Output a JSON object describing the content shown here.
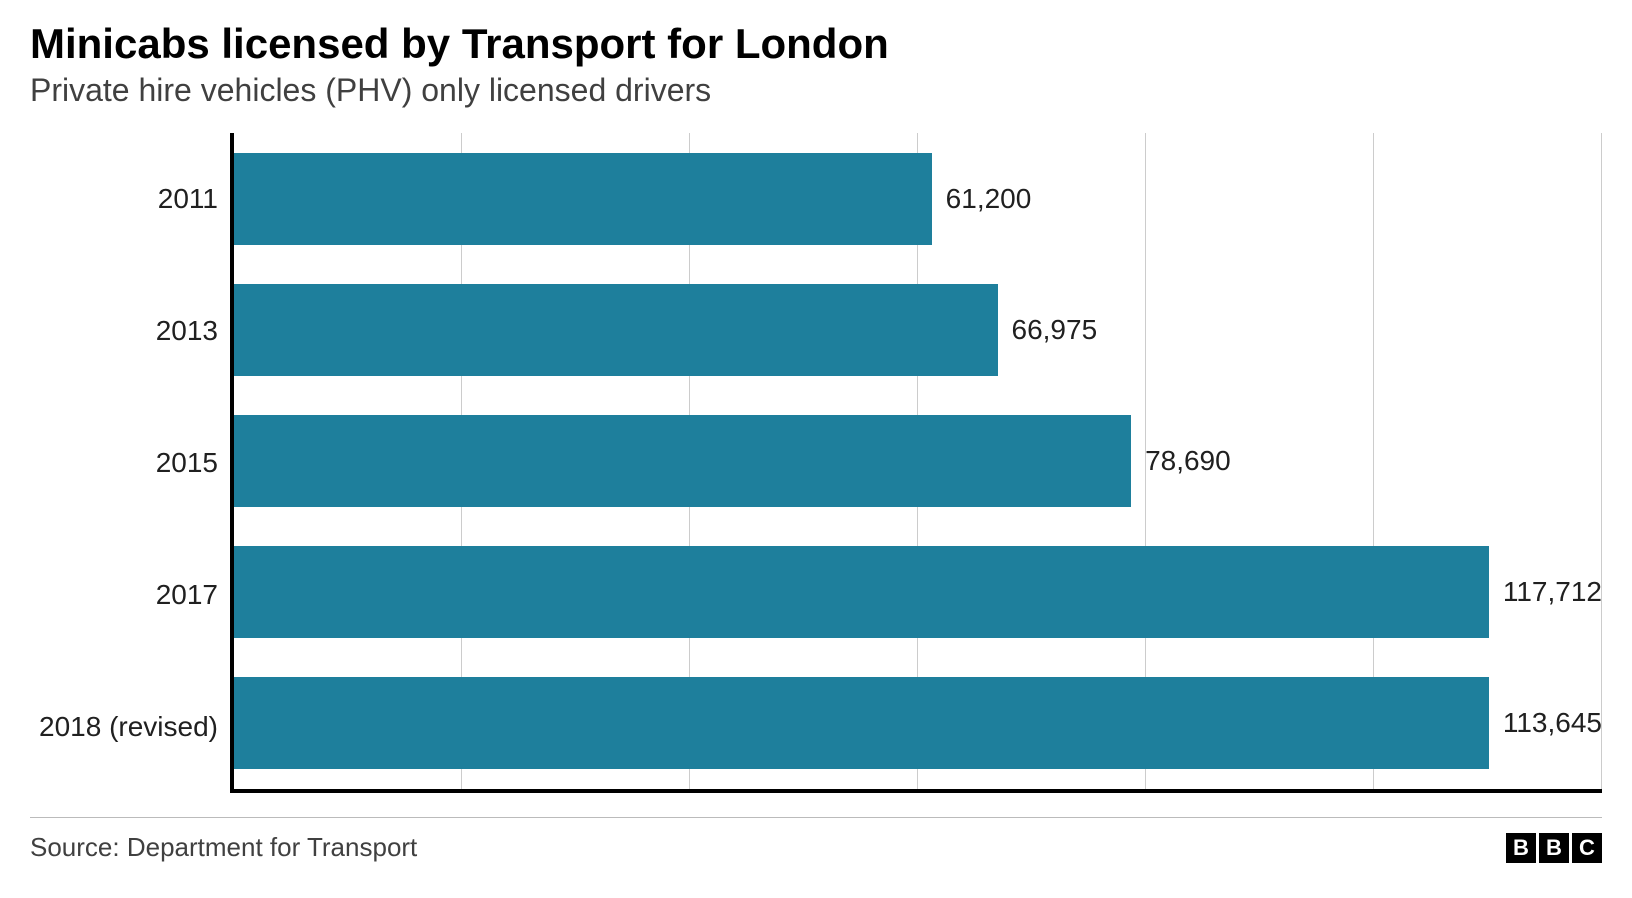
{
  "chart": {
    "type": "horizontal-bar",
    "title": "Minicabs licensed by Transport for London",
    "subtitle": "Private hire vehicles (PHV) only licensed drivers",
    "title_fontsize": 42,
    "subtitle_fontsize": 32,
    "title_color": "#000000",
    "subtitle_color": "#404040",
    "background_color": "#ffffff",
    "bar_color": "#1e7f9c",
    "axis_color": "#000000",
    "grid_color": "#cccccc",
    "label_fontsize": 28,
    "label_color": "#202020",
    "x_max": 120000,
    "grid_positions": [
      20000,
      40000,
      60000,
      80000,
      100000,
      120000
    ],
    "bars": [
      {
        "category": "2011",
        "value": 61200,
        "display": "61,200"
      },
      {
        "category": "2013",
        "value": 66975,
        "display": "66,975"
      },
      {
        "category": "2015",
        "value": 78690,
        "display": "78,690"
      },
      {
        "category": "2017",
        "value": 117712,
        "display": "117,712"
      },
      {
        "category": "2018 (revised)",
        "value": 113645,
        "display": "113,645"
      }
    ],
    "bar_height_pct": 14,
    "axis_line_width": 4
  },
  "footer": {
    "source": "Source: Department for Transport",
    "source_fontsize": 26,
    "logo_letters": [
      "B",
      "B",
      "C"
    ],
    "logo_bg": "#000000",
    "logo_fg": "#ffffff",
    "divider_color": "#bbbbbb"
  }
}
